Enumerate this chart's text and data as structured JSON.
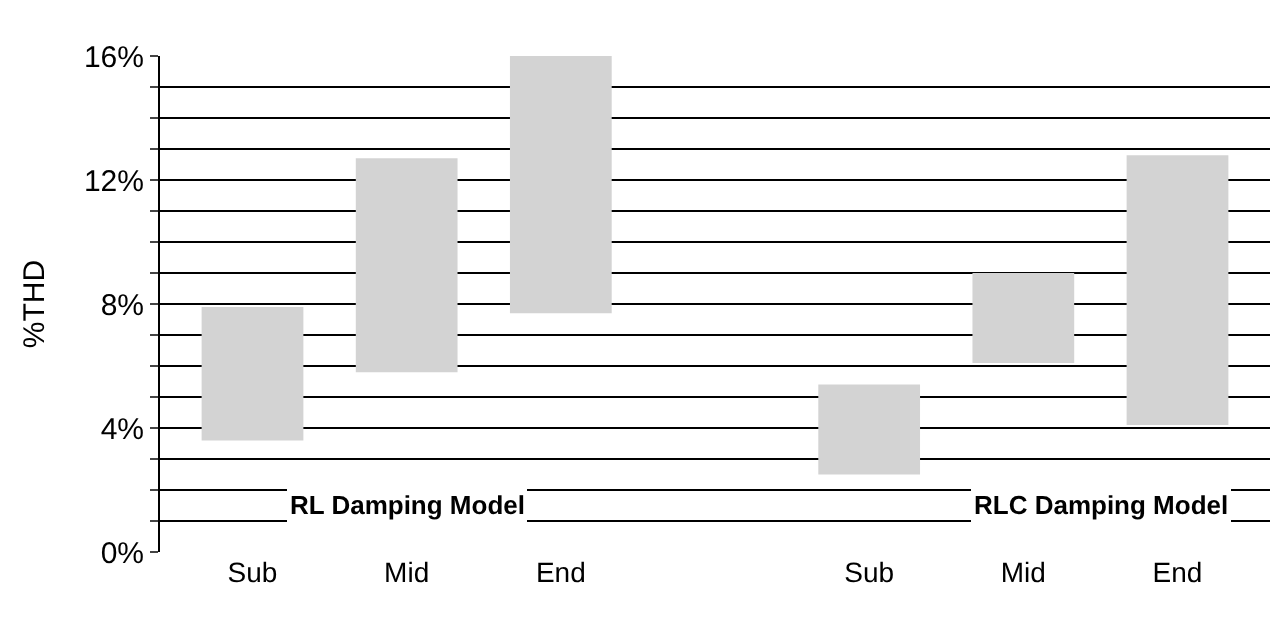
{
  "chart_data": {
    "type": "bar",
    "ylabel": "%THD",
    "categories": [
      "Sub",
      "Mid",
      "End",
      null,
      "Sub",
      "Mid",
      "End"
    ],
    "base": [
      3.6,
      5.8,
      7.7,
      null,
      2.5,
      6.1,
      4.1
    ],
    "values": [
      4.3,
      6.9,
      8.3,
      null,
      2.9,
      2.9,
      8.7
    ],
    "color": "#d3d3d3",
    "ylim": [
      0,
      16
    ],
    "yticks": [
      {
        "value": 0,
        "label": "0%"
      },
      {
        "value": 1,
        "label": null
      },
      {
        "value": 2,
        "label": null
      },
      {
        "value": 3,
        "label": null
      },
      {
        "value": 4,
        "label": "4%"
      },
      {
        "value": 5,
        "label": null
      },
      {
        "value": 6,
        "label": null
      },
      {
        "value": 7,
        "label": null
      },
      {
        "value": 8,
        "label": "8%"
      },
      {
        "value": 9,
        "label": null
      },
      {
        "value": 10,
        "label": null
      },
      {
        "value": 11,
        "label": null
      },
      {
        "value": 12,
        "label": "12%"
      },
      {
        "value": 13,
        "label": null
      },
      {
        "value": 14,
        "label": null
      },
      {
        "value": 15,
        "label": null
      },
      {
        "value": 16,
        "label": "16%"
      }
    ],
    "grid": "y",
    "annotations": [
      "RL Damping Model",
      "RLC Damping Model"
    ]
  }
}
